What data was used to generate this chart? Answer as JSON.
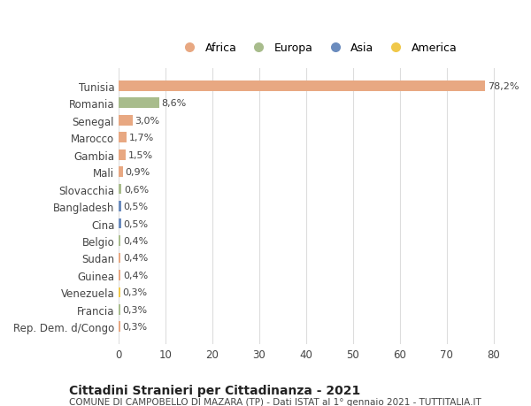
{
  "countries": [
    "Tunisia",
    "Romania",
    "Senegal",
    "Marocco",
    "Gambia",
    "Mali",
    "Slovacchia",
    "Bangladesh",
    "Cina",
    "Belgio",
    "Sudan",
    "Guinea",
    "Venezuela",
    "Francia",
    "Rep. Dem. d/Congo"
  ],
  "values": [
    78.2,
    8.6,
    3.0,
    1.7,
    1.5,
    0.9,
    0.6,
    0.5,
    0.5,
    0.4,
    0.4,
    0.4,
    0.3,
    0.3,
    0.3
  ],
  "labels": [
    "78,2%",
    "8,6%",
    "3,0%",
    "1,7%",
    "1,5%",
    "0,9%",
    "0,6%",
    "0,5%",
    "0,5%",
    "0,4%",
    "0,4%",
    "0,4%",
    "0,3%",
    "0,3%",
    "0,3%"
  ],
  "continents": [
    "Africa",
    "Europa",
    "Africa",
    "Africa",
    "Africa",
    "Africa",
    "Europa",
    "Asia",
    "Asia",
    "Europa",
    "Africa",
    "Africa",
    "America",
    "Europa",
    "Africa"
  ],
  "continent_colors": {
    "Africa": "#E8A882",
    "Europa": "#A8BC8C",
    "Asia": "#6B8CBE",
    "America": "#F0C84A"
  },
  "legend_items": [
    "Africa",
    "Europa",
    "Asia",
    "America"
  ],
  "legend_colors": [
    "#E8A882",
    "#A8BC8C",
    "#6B8CBE",
    "#F0C84A"
  ],
  "xlim": [
    0,
    85
  ],
  "xticks": [
    0,
    10,
    20,
    30,
    40,
    50,
    60,
    70,
    80
  ],
  "title": "Cittadini Stranieri per Cittadinanza - 2021",
  "subtitle": "COMUNE DI CAMPOBELLO DI MAZARA (TP) - Dati ISTAT al 1° gennaio 2021 - TUTTITALIA.IT",
  "background_color": "#ffffff",
  "grid_color": "#dddddd",
  "bar_height": 0.6
}
